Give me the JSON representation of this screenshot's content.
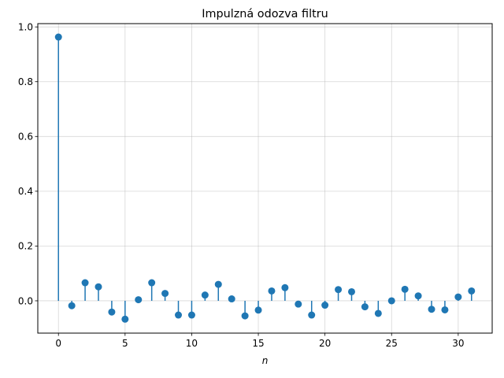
{
  "chart_data": {
    "type": "stem",
    "title": "Impulzná odozva filtru",
    "xlabel": "n",
    "ylabel": "",
    "xlim": [
      -1.55,
      32.55
    ],
    "ylim": [
      -0.118,
      1.012
    ],
    "xticks": [
      0,
      5,
      10,
      15,
      20,
      25,
      30
    ],
    "yticks": [
      0.0,
      0.2,
      0.4,
      0.6,
      0.8,
      1.0
    ],
    "ytick_labels": [
      "0.0",
      "0.2",
      "0.4",
      "0.6",
      "0.8",
      "1.0"
    ],
    "grid": true,
    "color": "#1f77b4",
    "x": [
      0,
      1,
      2,
      3,
      4,
      5,
      6,
      7,
      8,
      9,
      10,
      11,
      12,
      13,
      14,
      15,
      16,
      17,
      18,
      19,
      20,
      21,
      22,
      23,
      24,
      25,
      26,
      27,
      28,
      29,
      30,
      31
    ],
    "values": [
      0.963,
      -0.018,
      0.066,
      0.051,
      -0.041,
      -0.067,
      0.004,
      0.066,
      0.027,
      -0.052,
      -0.052,
      0.021,
      0.06,
      0.007,
      -0.055,
      -0.034,
      0.036,
      0.048,
      -0.012,
      -0.052,
      -0.016,
      0.041,
      0.033,
      -0.022,
      -0.046,
      0.0,
      0.042,
      0.018,
      -0.031,
      -0.033,
      0.014,
      0.036
    ]
  }
}
